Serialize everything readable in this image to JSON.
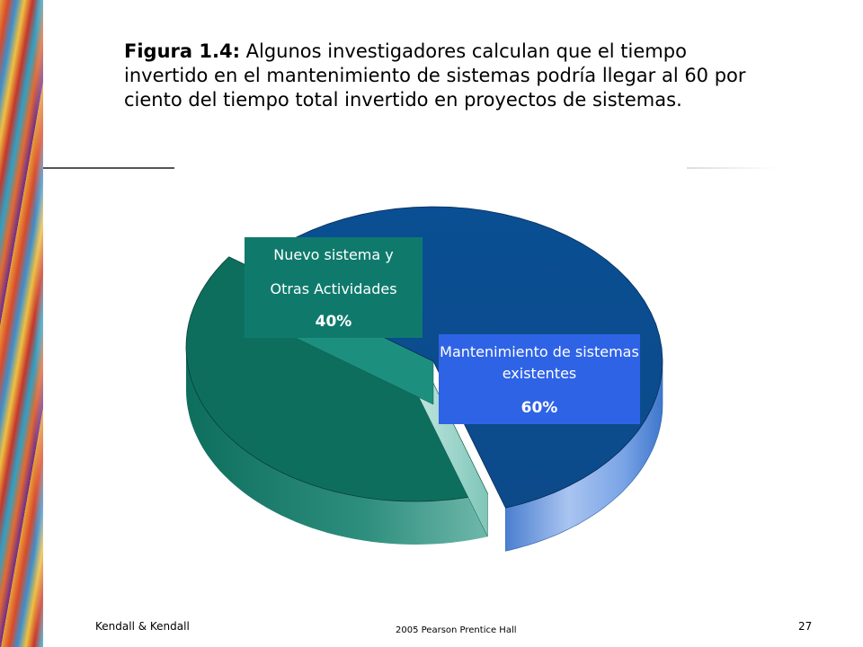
{
  "slide": {
    "caption_bold": "Figura 1.4:",
    "caption_text": " Algunos investigadores calculan que el tiempo invertido en el mantenimiento de sistemas podría llegar al 60 por ciento del tiempo total invertido en proyectos de sistemas."
  },
  "chart_data": {
    "type": "pie",
    "title": "",
    "slices": [
      {
        "label": "Nuevo sistema y Otras Actividades",
        "value": 40,
        "color": "#0e6e5e"
      },
      {
        "label": "Mantenimiento de sistemas existentes",
        "value": 60,
        "color": "#0b4f92"
      }
    ],
    "labels": {
      "new_line1": "Nuevo sistema y",
      "new_line2": "Otras Actividades",
      "new_pct": "40%",
      "main_line1": "Mantenimiento de sistemas existentes",
      "main_pct": "60%"
    }
  },
  "footer": {
    "left": "Kendall & Kendall",
    "center": "2005 Pearson Prentice Hall",
    "right": "27"
  }
}
